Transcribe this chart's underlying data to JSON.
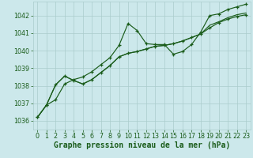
{
  "background_color": "#cce8eb",
  "grid_color": "#aacccc",
  "line_color": "#1a5c1a",
  "text_color": "#1a5c1a",
  "xlabel": "Graphe pression niveau de la mer (hPa)",
  "ylim": [
    1035.5,
    1042.8
  ],
  "xlim": [
    -0.5,
    23.5
  ],
  "yticks": [
    1036,
    1037,
    1038,
    1039,
    1040,
    1041,
    1042
  ],
  "xticks": [
    0,
    1,
    2,
    3,
    4,
    5,
    6,
    7,
    8,
    9,
    10,
    11,
    12,
    13,
    14,
    15,
    16,
    17,
    18,
    19,
    20,
    21,
    22,
    23
  ],
  "series1": [
    1036.2,
    1036.9,
    1037.2,
    1038.1,
    1038.35,
    1038.5,
    1038.8,
    1039.2,
    1039.6,
    1040.3,
    1041.55,
    1041.15,
    1040.4,
    1040.35,
    1040.35,
    1039.8,
    1039.95,
    1040.35,
    1041.05,
    1042.0,
    1042.1,
    1042.35,
    1042.5,
    1042.65
  ],
  "series2": [
    1036.2,
    1036.9,
    1038.05,
    1038.55,
    1038.3,
    1038.1,
    1038.35,
    1038.75,
    1039.15,
    1039.65,
    1039.85,
    1039.95,
    1040.1,
    1040.25,
    1040.3,
    1040.4,
    1040.55,
    1040.75,
    1040.95,
    1041.3,
    1041.6,
    1041.8,
    1041.95,
    1042.05
  ],
  "series3": [
    1036.2,
    1036.9,
    1038.05,
    1038.55,
    1038.3,
    1038.1,
    1038.35,
    1038.75,
    1039.15,
    1039.65,
    1039.85,
    1039.95,
    1040.1,
    1040.25,
    1040.3,
    1040.4,
    1040.55,
    1040.75,
    1040.95,
    1041.45,
    1041.65,
    1041.88,
    1042.05,
    1042.15
  ],
  "xlabel_fontsize": 7.0,
  "tick_fontsize": 5.8
}
